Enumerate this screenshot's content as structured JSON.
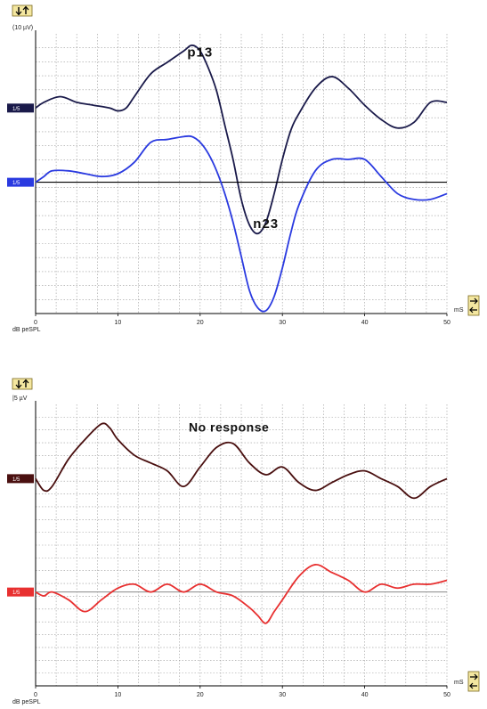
{
  "chart_data": [
    {
      "type": "line",
      "scale_label": "(10 µV)",
      "x_unit_label": "mS",
      "x_axis_label": "dB peSPL",
      "x_ticks": [
        0,
        10,
        20,
        30,
        40,
        50
      ],
      "xlim": [
        0,
        50
      ],
      "grid": true,
      "annotations": [
        {
          "text": "p13",
          "x": 20,
          "y": 44
        },
        {
          "text": "n23",
          "x": 28,
          "y": -16
        }
      ],
      "series": [
        {
          "name": "1/5",
          "color": "#1a1a4a",
          "baseline": 26,
          "x": [
            0,
            1,
            3,
            5,
            7,
            9,
            10,
            11,
            12,
            14,
            16,
            18,
            19,
            20,
            21,
            22,
            23,
            24,
            25,
            26,
            27,
            28,
            29,
            30,
            31,
            32,
            34,
            36,
            38,
            40,
            42,
            44,
            46,
            48,
            50
          ],
          "y": [
            26,
            28,
            30,
            28,
            27,
            26,
            25,
            26,
            30,
            38,
            42,
            46,
            48,
            46,
            40,
            32,
            20,
            8,
            -6,
            -15,
            -18,
            -14,
            -4,
            8,
            18,
            24,
            33,
            37,
            33,
            27,
            22,
            19,
            21,
            28,
            28
          ]
        },
        {
          "name": "1/5",
          "color": "#2a3ae0",
          "baseline": 0,
          "x": [
            0,
            1,
            2,
            4,
            6,
            8,
            10,
            12,
            14,
            16,
            18,
            19,
            20,
            21,
            22,
            23,
            24,
            25,
            26,
            27,
            28,
            29,
            30,
            31,
            32,
            34,
            36,
            38,
            40,
            42,
            44,
            46,
            48,
            50
          ],
          "y": [
            0,
            2,
            4,
            4,
            3,
            2,
            3,
            7,
            14,
            15,
            16,
            16,
            14,
            10,
            4,
            -4,
            -14,
            -26,
            -38,
            -44,
            -45,
            -40,
            -30,
            -18,
            -8,
            4,
            8,
            8,
            8,
            2,
            -4,
            -6,
            -6,
            -4
          ]
        }
      ]
    },
    {
      "type": "line",
      "scale_label": "|5 µV",
      "x_unit_label": "mS",
      "x_axis_label": "dB peSPL",
      "x_ticks": [
        0,
        10,
        20,
        30,
        40,
        50
      ],
      "xlim": [
        0,
        50
      ],
      "grid": true,
      "annotations": [
        {
          "text": "No response",
          "x": 23.5,
          "y": 12
        }
      ],
      "series": [
        {
          "name": "1/5",
          "color": "#4a1010",
          "baseline": 0,
          "x": [
            0,
            1,
            2,
            4,
            6,
            8,
            9,
            10,
            12,
            14,
            16,
            18,
            20,
            22,
            24,
            26,
            28,
            30,
            32,
            34,
            36,
            38,
            40,
            42,
            44,
            46,
            48,
            50
          ],
          "y": [
            0,
            -3,
            -2,
            5,
            10,
            14,
            13,
            10,
            6,
            4,
            2,
            -2,
            3,
            8,
            9,
            4,
            1,
            3,
            -1,
            -3,
            -1,
            1,
            2,
            0,
            -2,
            -5,
            -2,
            0
          ]
        },
        {
          "name": "1/5",
          "color": "#e83030",
          "baseline": -29,
          "x": [
            0,
            1,
            2,
            4,
            6,
            8,
            10,
            12,
            14,
            16,
            18,
            20,
            22,
            24,
            26,
            27,
            28,
            29,
            30,
            32,
            34,
            36,
            38,
            40,
            42,
            44,
            46,
            48,
            50
          ],
          "y": [
            -29,
            -30,
            -29,
            -31,
            -34,
            -31,
            -28,
            -27,
            -29,
            -27,
            -29,
            -27,
            -29,
            -30,
            -33,
            -35,
            -37,
            -34,
            -31,
            -25,
            -22,
            -24,
            -26,
            -29,
            -27,
            -28,
            -27,
            -27,
            -26
          ]
        }
      ]
    }
  ]
}
